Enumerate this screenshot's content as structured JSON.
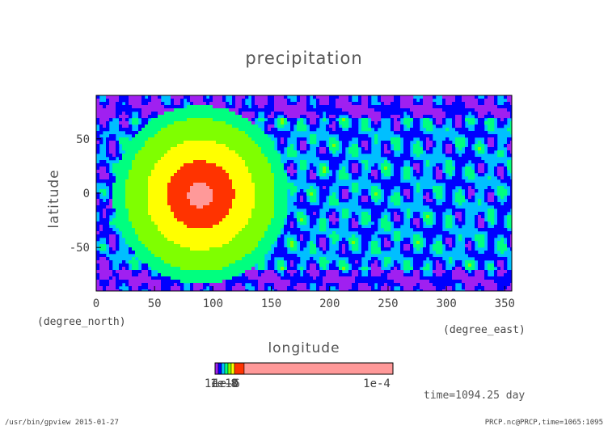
{
  "chart_data": {
    "type": "heatmap",
    "title": "precipitation",
    "xlabel": "longitude",
    "ylabel": "latitude",
    "x_unit": "(degree_east)",
    "y_unit": "(degree_north)",
    "xlim": [
      0,
      356
    ],
    "ylim": [
      -90,
      90
    ],
    "x_ticks": [
      "0",
      "50",
      "100",
      "150",
      "200",
      "250",
      "300",
      "350"
    ],
    "y_ticks": [
      "50",
      "0",
      "-50"
    ],
    "colorbar": {
      "labels": [
        "1e-10",
        "1e-8",
        "1e-6",
        "1e-4"
      ],
      "colors": [
        "#a020f0",
        "#0000ff",
        "#00bfff",
        "#00ff7f",
        "#7fff00",
        "#ffff00",
        "#ff3300",
        "#ff9999"
      ]
    },
    "time_label": "time=1094.25 day"
  },
  "footer": {
    "left": "/usr/bin/gpview  2015-01-27",
    "right": "PRCP.nc@PRCP,time=1065:1095"
  }
}
